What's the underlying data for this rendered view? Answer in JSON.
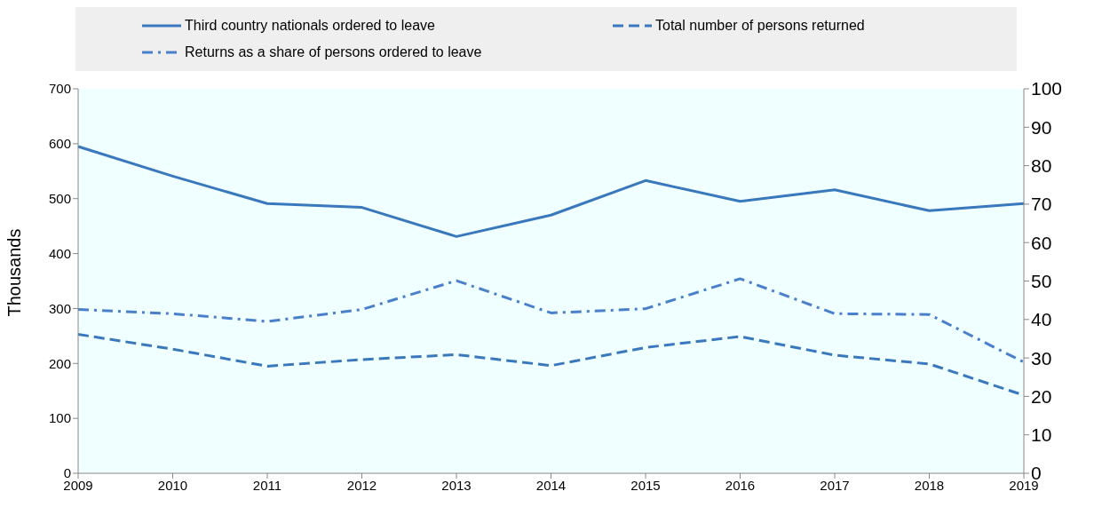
{
  "chart_data": {
    "type": "line",
    "ylabel": "Thousands",
    "categories": [
      "2009",
      "2010",
      "2011",
      "2012",
      "2013",
      "2014",
      "2015",
      "2016",
      "2017",
      "2018",
      "2019"
    ],
    "series": [
      {
        "name": "Third country nationals ordered to leave",
        "color": "#3a78bd",
        "line_style": "solid",
        "values": [
          595,
          541,
          491,
          484,
          431,
          470,
          533,
          495,
          516,
          478,
          491
        ]
      },
      {
        "name": "Total number of persons returned",
        "color": "#3a78bd",
        "line_style": "dashed",
        "values": [
          253,
          226,
          195,
          207,
          216,
          196,
          229,
          249,
          215,
          199,
          142
        ]
      },
      {
        "name": "Returns as a share of persons ordered to leave",
        "color": "#4a7fcc",
        "line_style": "dashdot",
        "axis": "y2",
        "values": [
          42.6,
          41.5,
          39.5,
          42.6,
          50.1,
          41.7,
          42.8,
          50.6,
          41.5,
          41.3,
          28.9
        ]
      }
    ],
    "ylim": [
      0,
      700
    ],
    "yticks": [
      0,
      100,
      200,
      300,
      400,
      500,
      600,
      700
    ],
    "y2lim": [
      0,
      100
    ],
    "y2ticks": [
      0,
      10,
      20,
      30,
      40,
      50,
      60,
      70,
      80,
      90,
      100
    ],
    "grid": false,
    "legend": "top",
    "marker": "none"
  }
}
